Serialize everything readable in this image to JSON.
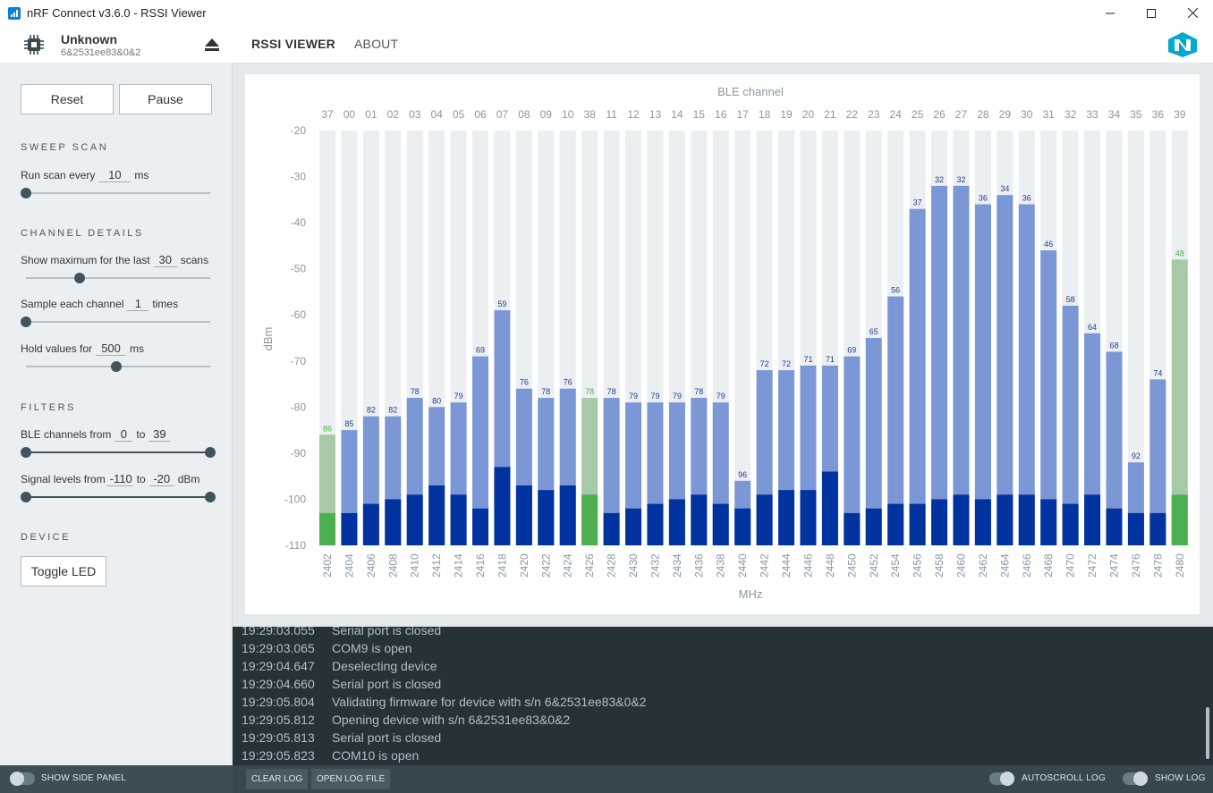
{
  "window": {
    "title": "nRF Connect v3.6.0 - RSSI Viewer"
  },
  "device": {
    "name": "Unknown",
    "serial": "6&2531ee83&0&2"
  },
  "nav": {
    "tabs": [
      {
        "label": "RSSI VIEWER",
        "active": true
      },
      {
        "label": "ABOUT",
        "active": false
      }
    ]
  },
  "sidebar": {
    "reset_label": "Reset",
    "pause_label": "Pause",
    "sweep_title": "SWEEP SCAN",
    "run_scan": {
      "prefix": "Run scan every",
      "value": "10",
      "suffix": "ms",
      "level": 0.0
    },
    "channel_title": "CHANNEL DETAILS",
    "show_max": {
      "prefix": "Show maximum for the last",
      "value": "30",
      "suffix": "scans",
      "level": 0.29
    },
    "sample": {
      "prefix": "Sample each channel",
      "value": "1",
      "suffix": "times",
      "level": 0.0
    },
    "hold": {
      "prefix": "Hold values for",
      "value": "500",
      "suffix": "ms",
      "level": 0.49
    },
    "filters_title": "FILTERS",
    "ble_channels": {
      "prefix": "BLE channels from",
      "from": "0",
      "mid": "to",
      "to": "39",
      "suffix": ""
    },
    "signal_levels": {
      "prefix": "Signal levels from",
      "from": "-110",
      "mid": "to",
      "to": "-20",
      "suffix": "dBm"
    },
    "device_title": "DEVICE",
    "toggle_led_label": "Toggle LED"
  },
  "chart_data": {
    "type": "bar",
    "title": "BLE channel",
    "xlabel": "MHz",
    "ylabel": "dBm",
    "ylim": [
      -110,
      -20
    ],
    "yticks": [
      -20,
      -30,
      -40,
      -50,
      -60,
      -70,
      -80,
      -90,
      -100,
      -110
    ],
    "ble_channels": [
      "37",
      "00",
      "01",
      "02",
      "03",
      "04",
      "05",
      "06",
      "07",
      "08",
      "09",
      "10",
      "38",
      "11",
      "12",
      "13",
      "14",
      "15",
      "16",
      "17",
      "18",
      "19",
      "20",
      "21",
      "22",
      "23",
      "24",
      "25",
      "26",
      "27",
      "28",
      "29",
      "30",
      "31",
      "32",
      "33",
      "34",
      "35",
      "36",
      "39"
    ],
    "categories": [
      "2402",
      "2404",
      "2406",
      "2408",
      "2410",
      "2412",
      "2414",
      "2416",
      "2418",
      "2420",
      "2422",
      "2424",
      "2426",
      "2428",
      "2430",
      "2432",
      "2434",
      "2436",
      "2438",
      "2440",
      "2442",
      "2444",
      "2446",
      "2448",
      "2450",
      "2452",
      "2454",
      "2456",
      "2458",
      "2460",
      "2462",
      "2464",
      "2466",
      "2468",
      "2470",
      "2472",
      "2474",
      "2476",
      "2478",
      "2480"
    ],
    "series": [
      {
        "name": "",
        "values": [
          -86,
          -85,
          -82,
          -82,
          -78,
          -80,
          -79,
          -69,
          -59,
          -76,
          -78,
          -76,
          -78,
          -78,
          -79,
          -79,
          -79,
          -78,
          -79,
          -96,
          -72,
          -72,
          -71,
          -71,
          -69,
          -65,
          -56,
          -37,
          -32,
          -32,
          -36,
          -34,
          -36,
          -46,
          -58,
          -64,
          -68,
          -92,
          -74,
          -48
        ]
      },
      {
        "name": "",
        "values": [
          -103,
          -103,
          -101,
          -100,
          -99,
          -97,
          -99,
          -102,
          -93,
          -97,
          -98,
          -97,
          -99,
          -103,
          -102,
          -101,
          -100,
          -99,
          -101,
          -102,
          -99,
          -98,
          -98,
          -94,
          -103,
          -102,
          -101,
          -101,
          -100,
          -99,
          -100,
          -99,
          -99,
          -100,
          -101,
          -99,
          -102,
          -103,
          -103,
          -99
        ]
      }
    ],
    "max_labels": [
      "86",
      "85",
      "82",
      "82",
      "78",
      "80",
      "79",
      "69",
      "59",
      "76",
      "78",
      "76",
      "78",
      "78",
      "79",
      "79",
      "79",
      "78",
      "79",
      "96",
      "72",
      "72",
      "71",
      "71",
      "69",
      "65",
      "56",
      "37",
      "32",
      "32",
      "36",
      "34",
      "36",
      "46",
      "58",
      "64",
      "68",
      "92",
      "74",
      "48"
    ],
    "advertising_indices": [
      0,
      12,
      39
    ],
    "colors": {
      "bg": "#eceff1",
      "max": "#7b97d5",
      "current": "#0033a0",
      "adv_max": "#a7c9a8",
      "adv_current": "#4caf50",
      "max_text": "#1e3f8a",
      "adv_text": "#4caf50"
    }
  },
  "log": {
    "entries": [
      {
        "ts": "19:29:03.055",
        "msg": "Serial port is closed"
      },
      {
        "ts": "19:29:03.065",
        "msg": "COM9 is open"
      },
      {
        "ts": "19:29:04.647",
        "msg": "Deselecting device"
      },
      {
        "ts": "19:29:04.660",
        "msg": "Serial port is closed"
      },
      {
        "ts": "19:29:05.804",
        "msg": "Validating firmware for device with s/n 6&2531ee83&0&2"
      },
      {
        "ts": "19:29:05.812",
        "msg": "Opening device with s/n 6&2531ee83&0&2"
      },
      {
        "ts": "19:29:05.813",
        "msg": "Serial port is closed"
      },
      {
        "ts": "19:29:05.823",
        "msg": "COM10 is open"
      }
    ]
  },
  "footer": {
    "show_side_panel": "SHOW SIDE PANEL",
    "clear_log": "CLEAR LOG",
    "open_log_file": "OPEN LOG FILE",
    "autoscroll_log": "AUTOSCROLL LOG",
    "show_log": "SHOW LOG"
  }
}
